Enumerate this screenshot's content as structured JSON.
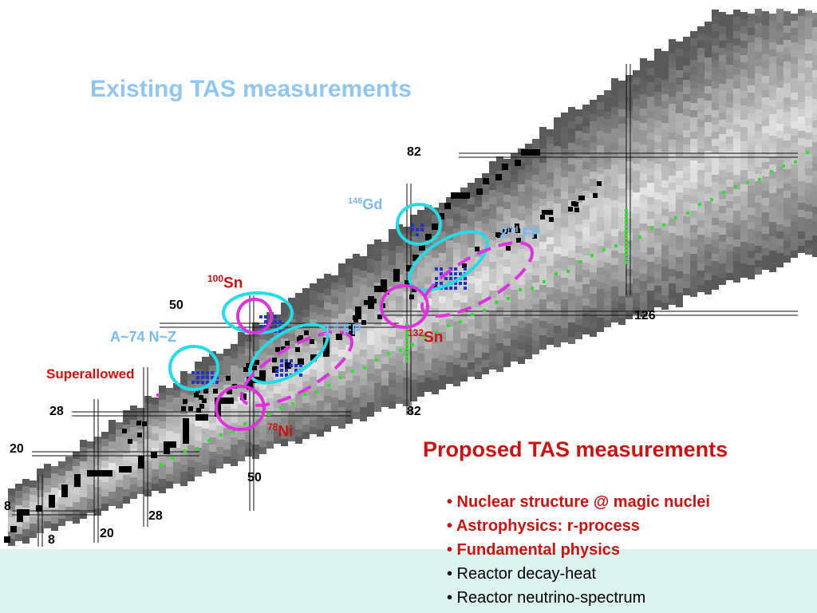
{
  "titles": {
    "existing": "Existing TAS measurements",
    "proposed": "Proposed TAS measurements"
  },
  "magic_numbers": {
    "n8": "8",
    "n20": "20",
    "n28": "28",
    "n50": "50",
    "n82": "82",
    "n126": "126",
    "z8": "8",
    "z20": "20",
    "z28": "28",
    "z50": "50",
    "z82": "82"
  },
  "nuclei": {
    "sn100": {
      "mass": "100",
      "symbol": "Sn"
    },
    "sn132": {
      "mass": "132",
      "symbol": "Sn"
    },
    "ni78": {
      "mass": "78",
      "symbol": "Ni"
    },
    "gd146": {
      "mass": "146",
      "symbol": "Gd"
    }
  },
  "region_labels": {
    "a74": "A~74 N~Z",
    "fp1_sup": "st",
    "fp1_num": "1",
    "fp1_text": " FP",
    "fp2_sup": "nd",
    "fp2_num": "2",
    "fp2_text": " FP",
    "superallowed": "Superallowed"
  },
  "bullets": [
    {
      "text": "• Nuclear structure @ magic nuclei",
      "emphasis": true
    },
    {
      "text": "• Astrophysics: r-process",
      "emphasis": true
    },
    {
      "text": "• Fundamental physics",
      "emphasis": true
    },
    {
      "text": "• Reactor decay-heat",
      "emphasis": false
    },
    {
      "text": "• Reactor neutrino-spectrum",
      "emphasis": false
    }
  ],
  "colors": {
    "existing_title": "#8fc6f2",
    "proposed": "#cc1111",
    "existing_circle": "#22dde6",
    "proposed_circle": "#dd33dd",
    "r_process_path": "#33dd33",
    "measured_nuclei": "#2233cc",
    "stable_nuclei": "#000000",
    "footer_band": "#dcf2ee"
  }
}
